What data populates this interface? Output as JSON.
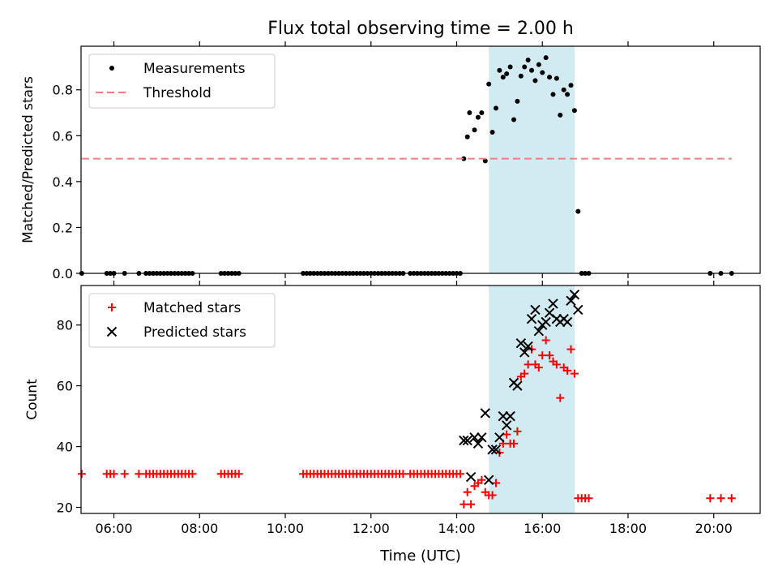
{
  "title": "Flux total observing time = 2.00 h",
  "xlabel": "Time (UTC)",
  "x_ticks": [
    "06:00",
    "08:00",
    "10:00",
    "12:00",
    "14:00",
    "16:00",
    "18:00",
    "20:00"
  ],
  "colors": {
    "measurement": "#000000",
    "threshold": "#f08080",
    "matched": "#ff0000",
    "predicted": "#000000",
    "highlight": "#add8e6"
  },
  "chart_data": [
    {
      "type": "scatter",
      "ylabel": "Matched/Predicted stars",
      "xlim": [
        "05:14",
        "21:05"
      ],
      "ylim": [
        0,
        0.99
      ],
      "y_ticks": [
        "0.0",
        "0.2",
        "0.4",
        "0.6",
        "0.8"
      ],
      "highlight_span": [
        "14:45",
        "16:45"
      ],
      "legend_position": "upper-left",
      "series": [
        {
          "name": "Measurements",
          "marker": "dot",
          "points": [
            [
              "05:15",
              0
            ],
            [
              "05:50",
              0
            ],
            [
              "05:55",
              0
            ],
            [
              "06:00",
              0
            ],
            [
              "06:15",
              0
            ],
            [
              "06:35",
              0
            ],
            [
              "06:45",
              0
            ],
            [
              "06:50",
              0
            ],
            [
              "06:55",
              0
            ],
            [
              "07:00",
              0
            ],
            [
              "07:05",
              0
            ],
            [
              "07:10",
              0
            ],
            [
              "07:15",
              0
            ],
            [
              "07:20",
              0
            ],
            [
              "07:25",
              0
            ],
            [
              "07:30",
              0
            ],
            [
              "07:35",
              0
            ],
            [
              "07:40",
              0
            ],
            [
              "07:45",
              0
            ],
            [
              "07:50",
              0
            ],
            [
              "08:30",
              0
            ],
            [
              "08:35",
              0
            ],
            [
              "08:40",
              0
            ],
            [
              "08:45",
              0
            ],
            [
              "08:50",
              0
            ],
            [
              "08:55",
              0
            ],
            [
              "10:25",
              0
            ],
            [
              "10:30",
              0
            ],
            [
              "10:35",
              0
            ],
            [
              "10:40",
              0
            ],
            [
              "10:45",
              0
            ],
            [
              "10:50",
              0
            ],
            [
              "10:55",
              0
            ],
            [
              "11:00",
              0
            ],
            [
              "11:05",
              0
            ],
            [
              "11:10",
              0
            ],
            [
              "11:15",
              0
            ],
            [
              "11:20",
              0
            ],
            [
              "11:25",
              0
            ],
            [
              "11:30",
              0
            ],
            [
              "11:35",
              0
            ],
            [
              "11:40",
              0
            ],
            [
              "11:45",
              0
            ],
            [
              "11:50",
              0
            ],
            [
              "11:55",
              0
            ],
            [
              "12:00",
              0
            ],
            [
              "12:05",
              0
            ],
            [
              "12:10",
              0
            ],
            [
              "12:15",
              0
            ],
            [
              "12:20",
              0
            ],
            [
              "12:25",
              0
            ],
            [
              "12:30",
              0
            ],
            [
              "12:35",
              0
            ],
            [
              "12:40",
              0
            ],
            [
              "12:45",
              0
            ],
            [
              "12:55",
              0
            ],
            [
              "13:00",
              0
            ],
            [
              "13:05",
              0
            ],
            [
              "13:10",
              0
            ],
            [
              "13:15",
              0
            ],
            [
              "13:20",
              0
            ],
            [
              "13:25",
              0
            ],
            [
              "13:30",
              0
            ],
            [
              "13:35",
              0
            ],
            [
              "13:40",
              0
            ],
            [
              "13:45",
              0
            ],
            [
              "13:50",
              0
            ],
            [
              "13:55",
              0
            ],
            [
              "14:00",
              0
            ],
            [
              "14:05",
              0
            ],
            [
              "14:10",
              0.5
            ],
            [
              "14:15",
              0.595
            ],
            [
              "14:18",
              0.7
            ],
            [
              "14:25",
              0.625
            ],
            [
              "14:30",
              0.68
            ],
            [
              "14:35",
              0.7
            ],
            [
              "14:40",
              0.49
            ],
            [
              "14:45",
              0.825
            ],
            [
              "14:50",
              0.615
            ],
            [
              "14:55",
              0.72
            ],
            [
              "15:00",
              0.885
            ],
            [
              "15:05",
              0.855
            ],
            [
              "15:10",
              0.87
            ],
            [
              "15:15",
              0.9
            ],
            [
              "15:20",
              0.67
            ],
            [
              "15:25",
              0.75
            ],
            [
              "15:30",
              0.86
            ],
            [
              "15:35",
              0.9
            ],
            [
              "15:40",
              0.93
            ],
            [
              "15:45",
              0.885
            ],
            [
              "15:50",
              0.84
            ],
            [
              "15:55",
              0.91
            ],
            [
              "16:00",
              0.875
            ],
            [
              "16:05",
              0.94
            ],
            [
              "16:10",
              0.855
            ],
            [
              "16:15",
              0.78
            ],
            [
              "16:20",
              0.85
            ],
            [
              "16:25",
              0.69
            ],
            [
              "16:30",
              0.8
            ],
            [
              "16:35",
              0.78
            ],
            [
              "16:40",
              0.82
            ],
            [
              "16:45",
              0.71
            ],
            [
              "16:50",
              0.27
            ],
            [
              "16:55",
              0
            ],
            [
              "17:00",
              0
            ],
            [
              "17:05",
              0
            ],
            [
              "19:55",
              0
            ],
            [
              "20:10",
              0
            ],
            [
              "20:25",
              0
            ]
          ]
        },
        {
          "name": "Threshold",
          "style": "dashed",
          "x": [
            "05:15",
            "20:25"
          ],
          "y": [
            0.5,
            0.5
          ]
        }
      ]
    },
    {
      "type": "scatter",
      "ylabel": "Count",
      "xlim": [
        "05:14",
        "21:05"
      ],
      "ylim": [
        18,
        93
      ],
      "y_ticks": [
        "20",
        "40",
        "60",
        "80"
      ],
      "highlight_span": [
        "14:45",
        "16:45"
      ],
      "legend_position": "upper-left",
      "series": [
        {
          "name": "Matched stars",
          "marker": "plus",
          "points": [
            [
              "05:15",
              31
            ],
            [
              "05:50",
              31
            ],
            [
              "05:55",
              31
            ],
            [
              "06:00",
              31
            ],
            [
              "06:15",
              31
            ],
            [
              "06:35",
              31
            ],
            [
              "06:45",
              31
            ],
            [
              "06:50",
              31
            ],
            [
              "06:55",
              31
            ],
            [
              "07:00",
              31
            ],
            [
              "07:05",
              31
            ],
            [
              "07:10",
              31
            ],
            [
              "07:15",
              31
            ],
            [
              "07:20",
              31
            ],
            [
              "07:25",
              31
            ],
            [
              "07:30",
              31
            ],
            [
              "07:35",
              31
            ],
            [
              "07:40",
              31
            ],
            [
              "07:45",
              31
            ],
            [
              "07:50",
              31
            ],
            [
              "08:30",
              31
            ],
            [
              "08:35",
              31
            ],
            [
              "08:40",
              31
            ],
            [
              "08:45",
              31
            ],
            [
              "08:50",
              31
            ],
            [
              "08:55",
              31
            ],
            [
              "10:25",
              31
            ],
            [
              "10:30",
              31
            ],
            [
              "10:35",
              31
            ],
            [
              "10:40",
              31
            ],
            [
              "10:45",
              31
            ],
            [
              "10:50",
              31
            ],
            [
              "10:55",
              31
            ],
            [
              "11:00",
              31
            ],
            [
              "11:05",
              31
            ],
            [
              "11:10",
              31
            ],
            [
              "11:15",
              31
            ],
            [
              "11:20",
              31
            ],
            [
              "11:25",
              31
            ],
            [
              "11:30",
              31
            ],
            [
              "11:35",
              31
            ],
            [
              "11:40",
              31
            ],
            [
              "11:45",
              31
            ],
            [
              "11:50",
              31
            ],
            [
              "11:55",
              31
            ],
            [
              "12:00",
              31
            ],
            [
              "12:05",
              31
            ],
            [
              "12:10",
              31
            ],
            [
              "12:15",
              31
            ],
            [
              "12:20",
              31
            ],
            [
              "12:25",
              31
            ],
            [
              "12:30",
              31
            ],
            [
              "12:35",
              31
            ],
            [
              "12:40",
              31
            ],
            [
              "12:45",
              31
            ],
            [
              "12:55",
              31
            ],
            [
              "13:00",
              31
            ],
            [
              "13:05",
              31
            ],
            [
              "13:10",
              31
            ],
            [
              "13:15",
              31
            ],
            [
              "13:20",
              31
            ],
            [
              "13:25",
              31
            ],
            [
              "13:30",
              31
            ],
            [
              "13:35",
              31
            ],
            [
              "13:40",
              31
            ],
            [
              "13:45",
              31
            ],
            [
              "13:50",
              31
            ],
            [
              "13:55",
              31
            ],
            [
              "14:00",
              31
            ],
            [
              "14:05",
              31
            ],
            [
              "14:10",
              21
            ],
            [
              "14:15",
              25
            ],
            [
              "14:20",
              21
            ],
            [
              "14:25",
              27
            ],
            [
              "14:30",
              28
            ],
            [
              "14:35",
              29
            ],
            [
              "14:40",
              25
            ],
            [
              "14:45",
              24
            ],
            [
              "14:50",
              24
            ],
            [
              "14:55",
              28
            ],
            [
              "15:00",
              38
            ],
            [
              "15:05",
              41
            ],
            [
              "15:10",
              44
            ],
            [
              "15:15",
              41
            ],
            [
              "15:20",
              41
            ],
            [
              "15:25",
              45
            ],
            [
              "15:30",
              63
            ],
            [
              "15:35",
              64
            ],
            [
              "15:40",
              67
            ],
            [
              "15:45",
              72
            ],
            [
              "15:50",
              67
            ],
            [
              "15:55",
              66
            ],
            [
              "16:00",
              70
            ],
            [
              "16:05",
              75
            ],
            [
              "16:10",
              70
            ],
            [
              "16:15",
              68
            ],
            [
              "16:20",
              67
            ],
            [
              "16:25",
              56
            ],
            [
              "16:30",
              66
            ],
            [
              "16:35",
              65
            ],
            [
              "16:40",
              72
            ],
            [
              "16:45",
              64
            ],
            [
              "16:50",
              23
            ],
            [
              "16:55",
              23
            ],
            [
              "17:00",
              23
            ],
            [
              "17:05",
              23
            ],
            [
              "19:55",
              23
            ],
            [
              "20:10",
              23
            ],
            [
              "20:25",
              23
            ]
          ]
        },
        {
          "name": "Predicted stars",
          "marker": "x",
          "points": [
            [
              "14:10",
              42
            ],
            [
              "14:15",
              42
            ],
            [
              "14:20",
              30
            ],
            [
              "14:25",
              43
            ],
            [
              "14:30",
              41
            ],
            [
              "14:35",
              43
            ],
            [
              "14:40",
              51
            ],
            [
              "14:45",
              29
            ],
            [
              "14:50",
              39
            ],
            [
              "14:55",
              39
            ],
            [
              "15:00",
              43
            ],
            [
              "15:05",
              50
            ],
            [
              "15:10",
              47
            ],
            [
              "15:15",
              50
            ],
            [
              "15:20",
              61
            ],
            [
              "15:25",
              60
            ],
            [
              "15:30",
              74
            ],
            [
              "15:35",
              71
            ],
            [
              "15:40",
              73
            ],
            [
              "15:45",
              82
            ],
            [
              "15:50",
              85
            ],
            [
              "15:55",
              78
            ],
            [
              "16:00",
              80
            ],
            [
              "16:05",
              81
            ],
            [
              "16:10",
              84
            ],
            [
              "16:15",
              87
            ],
            [
              "16:20",
              82
            ],
            [
              "16:25",
              81
            ],
            [
              "16:30",
              82
            ],
            [
              "16:35",
              81
            ],
            [
              "16:40",
              88
            ],
            [
              "16:45",
              90
            ],
            [
              "16:50",
              85
            ]
          ]
        }
      ]
    }
  ]
}
